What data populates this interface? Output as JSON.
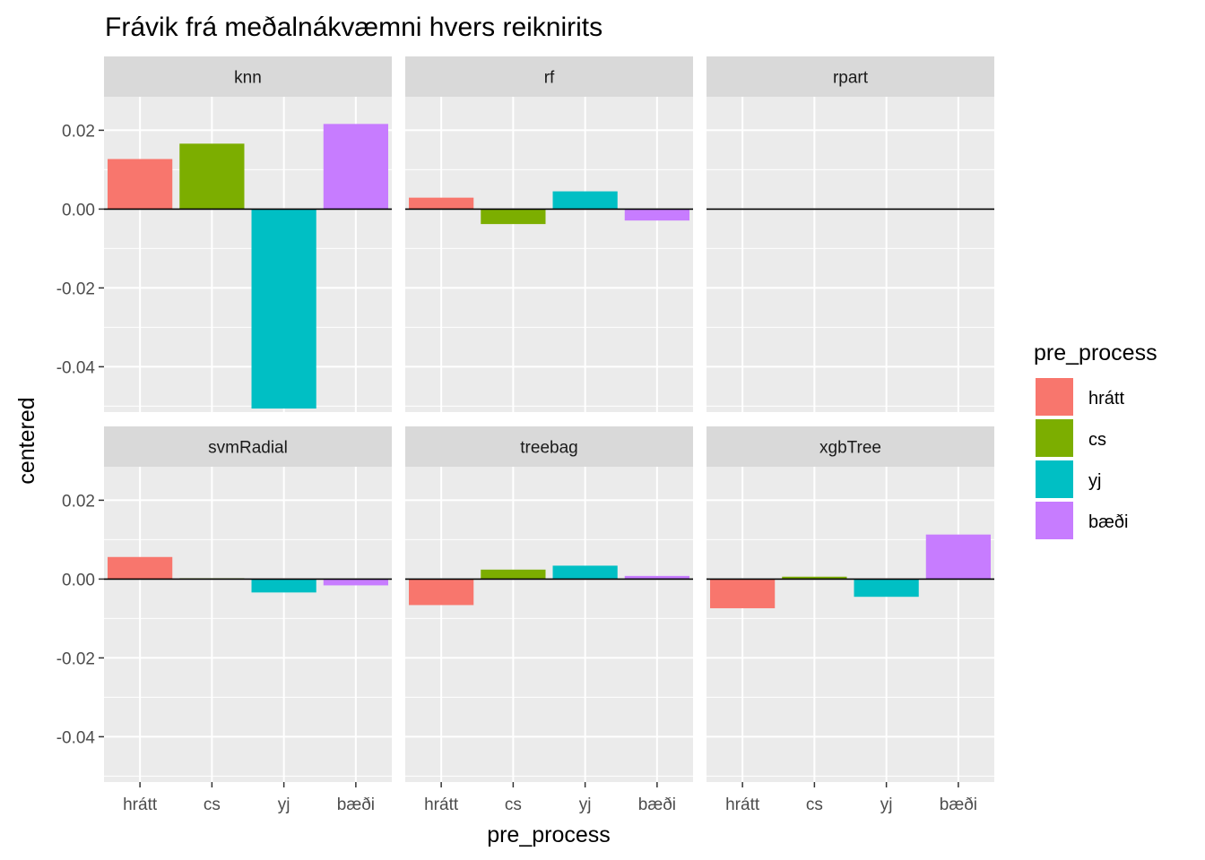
{
  "title": "Frávik frá meðalnákvæmni hvers reiknirits",
  "xlabel": "pre_process",
  "ylabel": "centered",
  "legend": {
    "title": "pre_process",
    "entries": [
      {
        "label": "hrátt",
        "color": "#F8766D"
      },
      {
        "label": "cs",
        "color": "#7CAE00"
      },
      {
        "label": "yj",
        "color": "#00BFC4"
      },
      {
        "label": "bæði",
        "color": "#C77CFF"
      }
    ]
  },
  "colors": {
    "panel_background": "#EBEBEB",
    "strip_background": "#D9D9D9",
    "grid": "#FFFFFF",
    "zero_line": "#000000"
  },
  "chart_data": {
    "type": "bar",
    "facet_layout": "2 rows x 3 columns",
    "categories": [
      "hrátt",
      "cs",
      "yj",
      "bæði"
    ],
    "ylim": [
      -0.0515,
      0.0285
    ],
    "y_ticks": [
      0.02,
      0.0,
      -0.02,
      -0.04
    ],
    "y_tick_labels": [
      "0.02",
      "0.00",
      "-0.02",
      "-0.04"
    ],
    "grid": true,
    "legend_position": "right",
    "facets": [
      {
        "name": "knn",
        "values": [
          0.0127,
          0.0166,
          -0.0506,
          0.0216
        ]
      },
      {
        "name": "rf",
        "values": [
          0.0029,
          -0.0038,
          0.0045,
          -0.0029
        ]
      },
      {
        "name": "rpart",
        "values": [
          0.0,
          0.0,
          0.0,
          0.0
        ]
      },
      {
        "name": "svmRadial",
        "values": [
          0.0056,
          0.0002,
          -0.0034,
          -0.0016
        ]
      },
      {
        "name": "treebag",
        "values": [
          -0.0066,
          0.0024,
          0.0034,
          0.0008
        ]
      },
      {
        "name": "xgbTree",
        "values": [
          -0.0074,
          0.0006,
          -0.0045,
          0.0113
        ]
      }
    ]
  }
}
